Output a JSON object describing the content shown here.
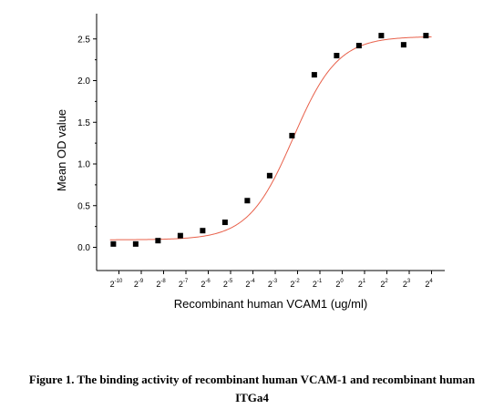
{
  "chart_data": {
    "type": "scatter",
    "xlabel": "Recombinant human VCAM1 (ug/ml)",
    "ylabel": "Mean OD value",
    "x_scale": "log2",
    "x_ticks": [
      -10,
      -9,
      -8,
      -7,
      -6,
      -5,
      -4,
      -3,
      -2,
      -1,
      0,
      1,
      2,
      3,
      4
    ],
    "x_tick_base": "2",
    "y_ticks": [
      "0.0",
      "0.5",
      "1.0",
      "1.5",
      "2.0",
      "2.5"
    ],
    "ylim": [
      -0.25,
      2.75
    ],
    "series": [
      {
        "marker": "square",
        "color": "#000000",
        "x_log2": [
          -10.25,
          -9.25,
          -8.25,
          -7.25,
          -6.25,
          -5.25,
          -4.25,
          -3.25,
          -2.25,
          -1.25,
          -0.25,
          0.75,
          1.75,
          2.75,
          3.75
        ],
        "y": [
          0.04,
          0.04,
          0.08,
          0.14,
          0.2,
          0.3,
          0.56,
          0.86,
          1.34,
          2.07,
          2.3,
          2.42,
          2.54,
          2.43,
          2.54
        ]
      }
    ],
    "fit": {
      "type": "4PL sigmoid",
      "color": "#e8604a",
      "bottom": 0.09,
      "top": 2.53,
      "log2_ec50": -2.2,
      "hill": 0.72
    }
  },
  "caption": {
    "line1": "Figure 1. The binding activity of recombinant human VCAM-1 and recombinant human",
    "line2": "ITGa4"
  }
}
